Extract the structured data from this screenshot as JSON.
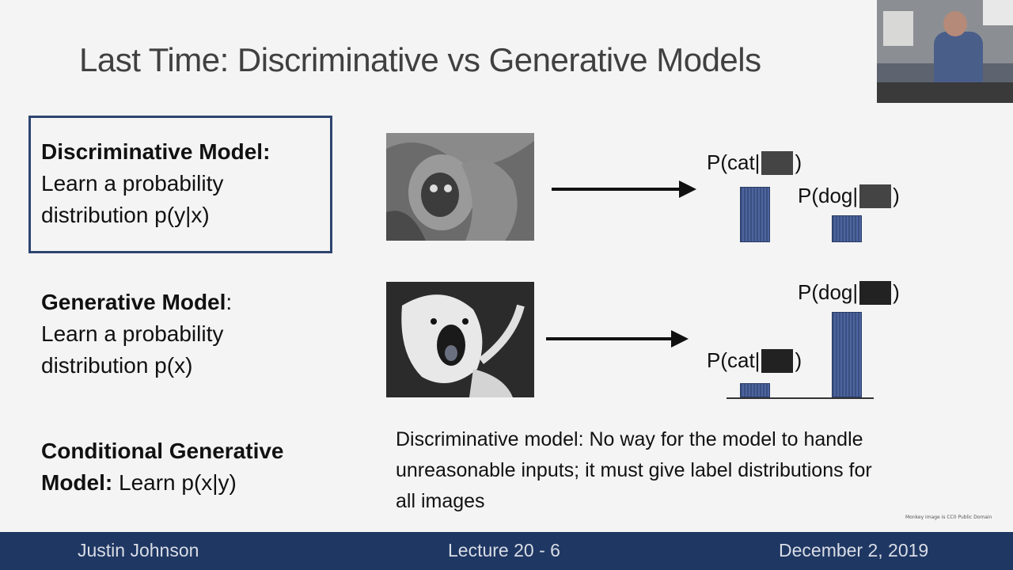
{
  "slide": {
    "title": "Last Time: Discriminative vs Generative Models",
    "discriminative": {
      "bold": "Discriminative Model:",
      "line2": "Learn a probability",
      "line3": "distribution p(y|x)"
    },
    "generative": {
      "bold": "Generative Model",
      "colon": ":",
      "line2": "Learn a probability",
      "line3": "distribution p(x)"
    },
    "conditional": {
      "bold1": "Conditional Generative",
      "bold2": "Model:",
      "rest": " Learn p(x|y)"
    },
    "top_labels": {
      "cat_prefix": "P(cat|",
      "dog_prefix": "P(dog|",
      "suffix": ")"
    },
    "bottom_labels": {
      "dog_prefix": "P(dog|",
      "cat_prefix": "P(cat|",
      "suffix": ")"
    },
    "note": "Discriminative model: No way for the model to handle unreasonable inputs; it must give label distributions for all images",
    "credit": "Monkey image is CC0 Public Domain",
    "icons": {
      "monkey_photo": "monkey-photo",
      "dog_photo": "dog-photo",
      "webcam": "lecturer-webcam"
    }
  },
  "footer": {
    "author": "Justin Johnson",
    "lecture": "Lecture 20 - 6",
    "date": "December 2, 2019"
  }
}
